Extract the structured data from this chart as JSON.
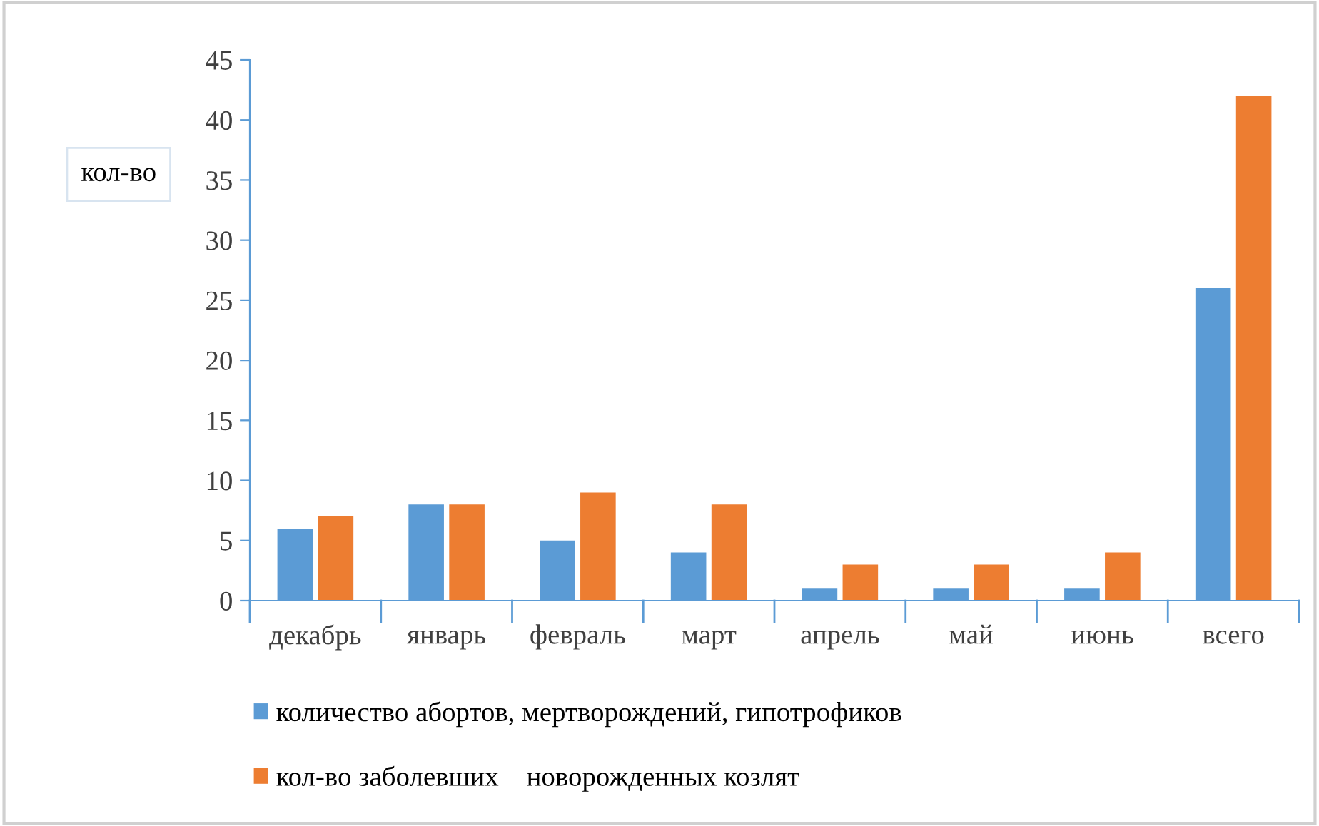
{
  "chart_data": {
    "type": "bar",
    "ylabel": "кол-во",
    "categories": [
      "декабрь",
      "январь",
      "февраль",
      "март",
      "апрель",
      "май",
      "июнь",
      "всего"
    ],
    "series": [
      {
        "name": "количество абортов, мертворождений, гипотрофиков",
        "color": "#5b9bd5",
        "values": [
          6,
          8,
          5,
          4,
          1,
          1,
          1,
          26
        ]
      },
      {
        "name": "кол-во заболевших    новорожденных козлят",
        "color": "#ed7d31",
        "values": [
          7,
          8,
          9,
          8,
          3,
          3,
          4,
          42
        ]
      }
    ],
    "ylim": [
      0,
      45
    ],
    "yticks": [
      0,
      5,
      10,
      15,
      20,
      25,
      30,
      35,
      40,
      45
    ],
    "grid": false,
    "legend": "bottom"
  }
}
